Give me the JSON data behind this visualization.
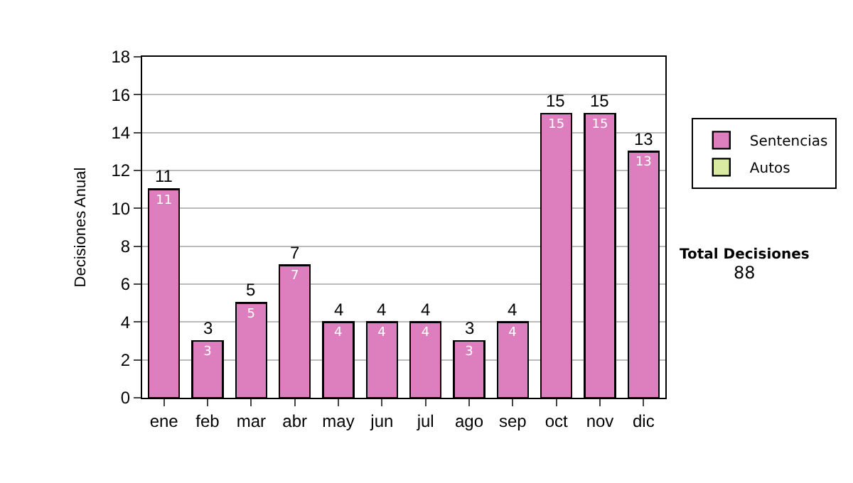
{
  "chart_data": {
    "type": "bar",
    "stacked": true,
    "ylabel": "Decisiones Anual",
    "categories": [
      "ene",
      "feb",
      "mar",
      "abr",
      "may",
      "jun",
      "jul",
      "ago",
      "sep",
      "oct",
      "nov",
      "dic"
    ],
    "series": [
      {
        "name": "Sentencias",
        "color": "#dd7fbf",
        "values": [
          11,
          3,
          5,
          7,
          4,
          4,
          4,
          3,
          4,
          15,
          15,
          13
        ],
        "value_labels": [
          "11",
          "3",
          "5",
          "7",
          "4",
          "4",
          "4",
          "3",
          "4",
          "15",
          "15",
          "13"
        ]
      },
      {
        "name": "Autos",
        "color": "#d9eba0",
        "values": [
          null,
          null,
          null,
          null,
          null,
          null,
          null,
          null,
          null,
          null,
          null,
          null
        ]
      }
    ],
    "totals": [
      "11",
      "3",
      "5",
      "7",
      "4",
      "4",
      "4",
      "3",
      "4",
      "15",
      "15",
      "13"
    ],
    "ylim": [
      0,
      18
    ],
    "yticks": [
      0,
      2,
      4,
      6,
      8,
      10,
      12,
      14,
      16,
      18
    ],
    "grid": "y",
    "legend": "right",
    "annotations": [
      "Total Decisiones",
      "88"
    ]
  }
}
